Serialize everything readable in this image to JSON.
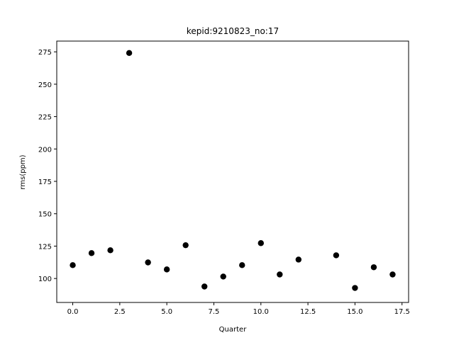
{
  "chart_data": {
    "type": "scatter",
    "title": "kepid:9210823_no:17",
    "xlabel": "Quarter",
    "ylabel": "rms(ppm)",
    "xlim": [
      -0.85,
      17.85
    ],
    "ylim": [
      81.5,
      283.3
    ],
    "xticks": [
      0,
      2.5,
      5,
      7.5,
      10,
      12.5,
      15,
      17.5
    ],
    "xtick_labels": [
      "0.0",
      "2.5",
      "5.0",
      "7.5",
      "10.0",
      "12.5",
      "15.0",
      "17.5"
    ],
    "yticks": [
      100,
      125,
      150,
      175,
      200,
      225,
      250,
      275
    ],
    "ytick_labels": [
      "100",
      "125",
      "150",
      "175",
      "200",
      "225",
      "250",
      "275"
    ],
    "grid": false,
    "marker_color": "#000000",
    "points": [
      {
        "x": 0,
        "y": 110.3
      },
      {
        "x": 1,
        "y": 119.6
      },
      {
        "x": 2,
        "y": 121.8
      },
      {
        "x": 3,
        "y": 274.1
      },
      {
        "x": 4,
        "y": 112.4
      },
      {
        "x": 5,
        "y": 107.0
      },
      {
        "x": 6,
        "y": 125.7
      },
      {
        "x": 7,
        "y": 93.8
      },
      {
        "x": 8,
        "y": 101.5
      },
      {
        "x": 9,
        "y": 110.3
      },
      {
        "x": 10,
        "y": 127.3
      },
      {
        "x": 11,
        "y": 103.1
      },
      {
        "x": 12,
        "y": 114.6
      },
      {
        "x": 14,
        "y": 117.9
      },
      {
        "x": 15,
        "y": 92.7
      },
      {
        "x": 16,
        "y": 108.7
      },
      {
        "x": 17,
        "y": 103.1
      }
    ]
  }
}
